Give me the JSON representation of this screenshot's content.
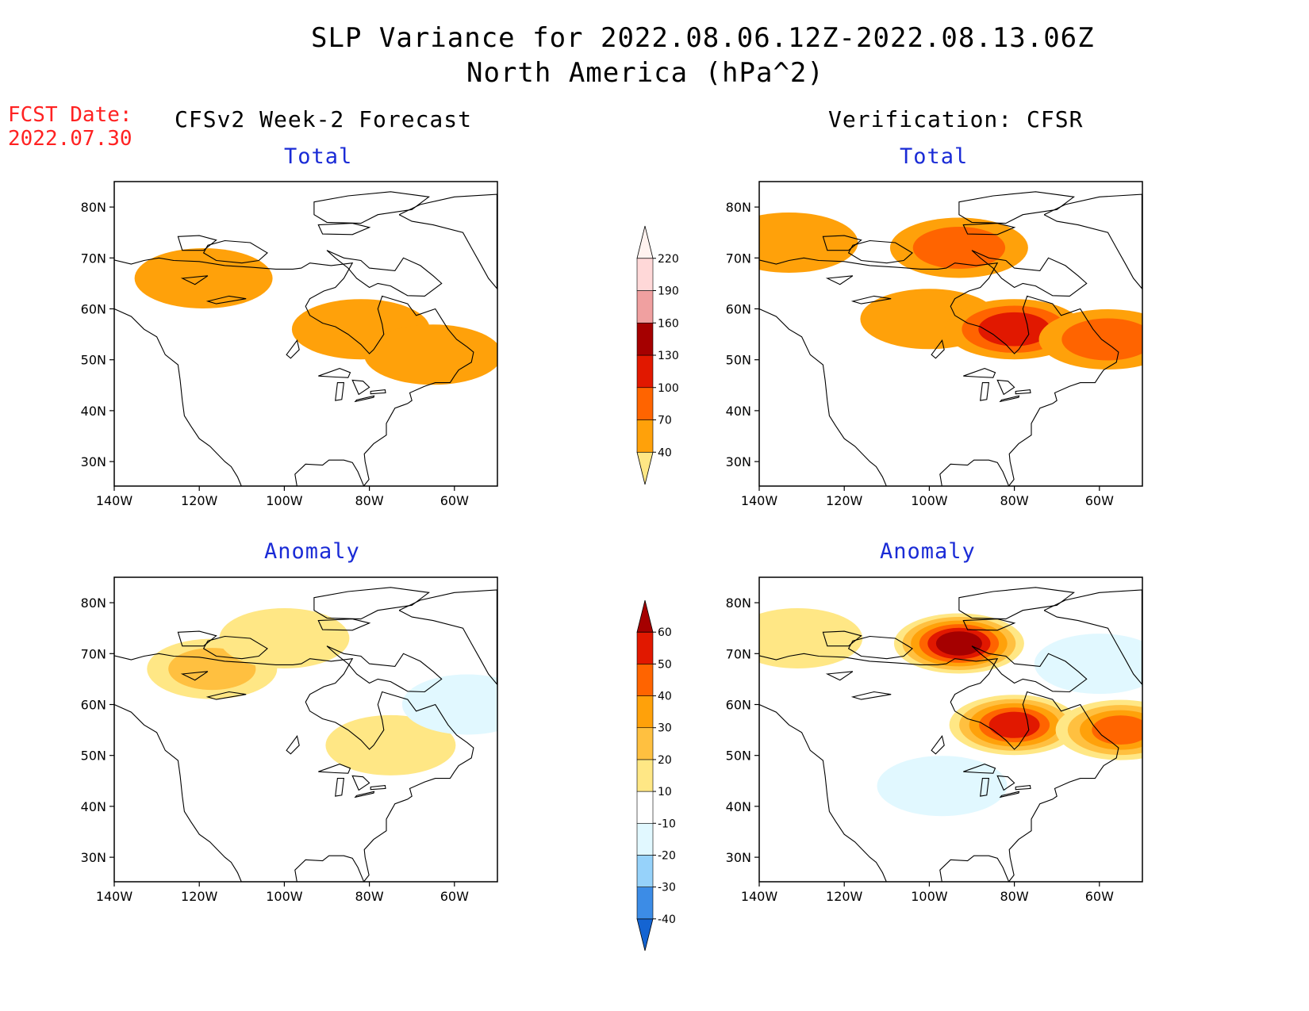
{
  "header": {
    "title": "SLP Variance for 2022.08.06.12Z-2022.08.13.06Z",
    "subtitle": "North America (hPa^2)"
  },
  "fcst": {
    "label": "FCST Date:",
    "date": "2022.07.30"
  },
  "columns": {
    "left": "CFSv2 Week-2 Forecast",
    "right": "Verification: CFSR"
  },
  "panel_titles": {
    "total": "Total",
    "anomaly": "Anomaly"
  },
  "chart_data": {
    "type": "heatmap",
    "x_ticks": [
      "140W",
      "120W",
      "100W",
      "80W",
      "60W"
    ],
    "y_ticks": [
      "80N",
      "70N",
      "60N",
      "50N",
      "40N",
      "30N"
    ],
    "lon_range": [
      -140,
      -50
    ],
    "lat_range": [
      25,
      85
    ],
    "total_colorbar": {
      "levels": [
        40,
        70,
        100,
        130,
        160,
        190,
        220
      ],
      "colors": [
        "#ffe785",
        "#ffa10a",
        "#ff6400",
        "#e11800",
        "#a50000",
        "#f0a0a0",
        "#ffd8d8",
        "#fff2ef"
      ]
    },
    "anomaly_colorbar": {
      "levels": [
        -40,
        -30,
        -20,
        -10,
        10,
        20,
        30,
        40,
        50,
        60
      ],
      "colors": [
        "#1464d2",
        "#3c8ce6",
        "#96d2fa",
        "#e1f8ff",
        "#ffffff",
        "#ffe785",
        "#ffc040",
        "#ffa10a",
        "#ff6400",
        "#e11800",
        "#a50000"
      ]
    },
    "panels": [
      {
        "name": "forecast-total",
        "features": [
          {
            "lon": -119,
            "lat": 66,
            "value": 50
          },
          {
            "lon": -82,
            "lat": 56,
            "value": 50
          },
          {
            "lon": -65,
            "lat": 51,
            "value": 50
          }
        ]
      },
      {
        "name": "verification-total",
        "features": [
          {
            "lon": -133,
            "lat": 73,
            "value": 50
          },
          {
            "lon": -93,
            "lat": 72,
            "value": 90
          },
          {
            "lon": -100,
            "lat": 58,
            "value": 50
          },
          {
            "lon": -80,
            "lat": 56,
            "value": 110
          },
          {
            "lon": -58,
            "lat": 54,
            "value": 85
          }
        ]
      },
      {
        "name": "forecast-anomaly",
        "features": [
          {
            "lon": -117,
            "lat": 67,
            "value": 25
          },
          {
            "lon": -100,
            "lat": 73,
            "value": 15
          },
          {
            "lon": -75,
            "lat": 52,
            "value": 15
          },
          {
            "lon": -57,
            "lat": 60,
            "value": -12
          }
        ]
      },
      {
        "name": "verification-anomaly",
        "features": [
          {
            "lon": -131,
            "lat": 73,
            "value": 15
          },
          {
            "lon": -93,
            "lat": 72,
            "value": 60
          },
          {
            "lon": -80,
            "lat": 56,
            "value": 55
          },
          {
            "lon": -55,
            "lat": 55,
            "value": 45
          },
          {
            "lon": -60,
            "lat": 68,
            "value": -12
          },
          {
            "lon": -97,
            "lat": 44,
            "value": -12
          }
        ]
      }
    ]
  }
}
